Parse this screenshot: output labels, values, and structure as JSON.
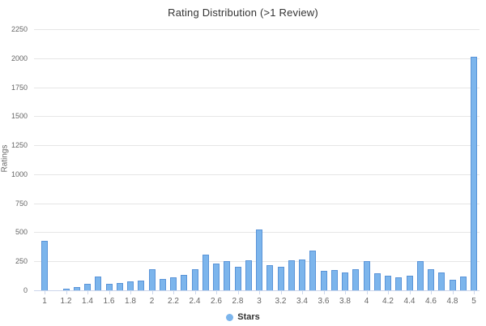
{
  "title": "Rating Distribution (>1 Review)",
  "y_axis_title": "Ratings",
  "legend": {
    "label": "Stars",
    "marker_color": "#7cb5ec"
  },
  "colors": {
    "bar_fill": "#7cb5ec",
    "bar_border": "#5a94d8",
    "gridline": "#e6e6e6",
    "axis_line": "#ccd6eb",
    "tick_label": "#666666",
    "title_text": "#333333"
  },
  "chart_data": {
    "type": "bar",
    "title": "Rating Distribution (>1 Review)",
    "xlabel": "",
    "ylabel": "Ratings",
    "series_name": "Stars",
    "x": [
      1.0,
      1.1,
      1.2,
      1.3,
      1.4,
      1.5,
      1.6,
      1.7,
      1.8,
      1.9,
      2.0,
      2.1,
      2.2,
      2.3,
      2.4,
      2.5,
      2.6,
      2.7,
      2.8,
      2.9,
      3.0,
      3.1,
      3.2,
      3.3,
      3.4,
      3.5,
      3.6,
      3.7,
      3.8,
      3.9,
      4.0,
      4.1,
      4.2,
      4.3,
      4.4,
      4.5,
      4.6,
      4.7,
      4.8,
      4.9,
      5.0
    ],
    "values": [
      425,
      0,
      15,
      25,
      55,
      120,
      55,
      65,
      75,
      85,
      180,
      100,
      110,
      130,
      185,
      305,
      230,
      255,
      205,
      260,
      525,
      220,
      200,
      260,
      265,
      340,
      170,
      175,
      155,
      185,
      255,
      145,
      125,
      110,
      125,
      250,
      180,
      155,
      90,
      120,
      2010
    ],
    "ylim": [
      0,
      2250
    ],
    "y_ticks": [
      0,
      250,
      500,
      750,
      1000,
      1250,
      1500,
      1750,
      2000,
      2250
    ],
    "x_tick_labels": [
      "1",
      "1.2",
      "1.4",
      "1.6",
      "1.8",
      "2",
      "2.2",
      "2.4",
      "2.6",
      "2.8",
      "3",
      "3.2",
      "3.4",
      "3.6",
      "3.8",
      "4",
      "4.2",
      "4.4",
      "4.6",
      "4.8",
      "5"
    ],
    "grid": true,
    "legend_position": "bottom"
  }
}
